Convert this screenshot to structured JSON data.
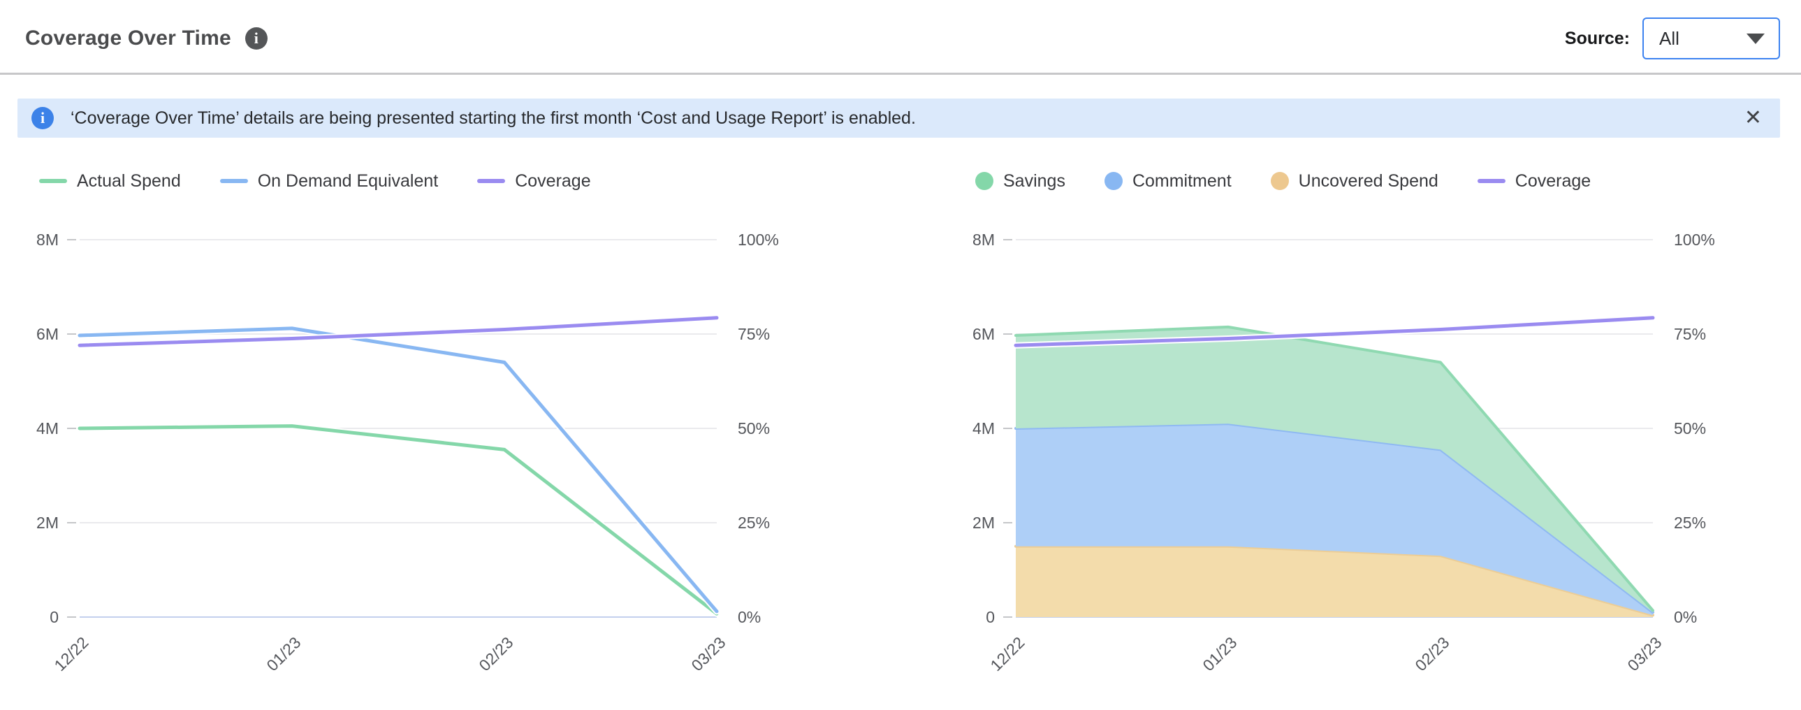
{
  "header": {
    "title": "Coverage Over Time",
    "source_label": "Source:",
    "source_value": "All"
  },
  "banner": {
    "text": "‘Coverage Over Time’ details are being presented starting the first month ‘Cost and Usage Report’ is enabled.",
    "close_icon": "✕"
  },
  "colors": {
    "accent_blue": "#3c82f0",
    "banner_bg": "#dbe9fb",
    "banner_icon_blue": "#3c82e8",
    "header_icon_gray": "#545658",
    "grid": "#e4e4e7",
    "zero_line": "#c3d0ee",
    "axis_text": "#54565b",
    "green": "#84d7a9",
    "blue": "#88b7f2",
    "purple": "#9a8bf0",
    "orange": "#edc88f",
    "green_fill": "#b7e5cd",
    "blue_fill": "#aecff7",
    "orange_fill": "#f3dcab"
  },
  "chart_data": [
    {
      "name": "coverage-line-chart",
      "type": "line",
      "title": "",
      "categories": [
        "12/22",
        "01/23",
        "02/23",
        "03/23"
      ],
      "left_axis": {
        "max": 8,
        "unit": "M",
        "ticks": [
          {
            "value": 0,
            "label": "0"
          },
          {
            "value": 2,
            "label": "2M"
          },
          {
            "value": 4,
            "label": "4M"
          },
          {
            "value": 6,
            "label": "6M"
          },
          {
            "value": 8,
            "label": "8M"
          }
        ]
      },
      "right_axis": {
        "max": 100,
        "unit": "%",
        "ticks": [
          {
            "value": 0,
            "label": "0%"
          },
          {
            "value": 25,
            "label": "25%"
          },
          {
            "value": 50,
            "label": "50%"
          },
          {
            "value": 75,
            "label": "75%"
          },
          {
            "value": 100,
            "label": "100%"
          }
        ]
      },
      "legend": [
        {
          "label": "Actual Spend",
          "swatch": "line",
          "color": "#84d7a9"
        },
        {
          "label": "On Demand Equivalent",
          "swatch": "line",
          "color": "#88b7f2"
        },
        {
          "label": "Coverage",
          "swatch": "line",
          "color": "#9a8bf0"
        }
      ],
      "series": [
        {
          "name": "Actual Spend",
          "style": "line",
          "axis": "left",
          "color": "#84d7a9",
          "values": [
            4.0,
            4.05,
            3.55,
            0.07
          ]
        },
        {
          "name": "On Demand Equivalent",
          "style": "line",
          "axis": "left",
          "color": "#88b7f2",
          "values": [
            5.97,
            6.12,
            5.4,
            0.12
          ]
        },
        {
          "name": "Coverage",
          "style": "line",
          "axis": "right",
          "color": "#9a8bf0",
          "values": [
            72,
            73.8,
            76.2,
            79.3
          ]
        }
      ]
    },
    {
      "name": "coverage-area-chart",
      "type": "area",
      "title": "",
      "categories": [
        "12/22",
        "01/23",
        "02/23",
        "03/23"
      ],
      "left_axis": {
        "max": 8,
        "unit": "M",
        "ticks": [
          {
            "value": 0,
            "label": "0"
          },
          {
            "value": 2,
            "label": "2M"
          },
          {
            "value": 4,
            "label": "4M"
          },
          {
            "value": 6,
            "label": "6M"
          },
          {
            "value": 8,
            "label": "8M"
          }
        ]
      },
      "right_axis": {
        "max": 100,
        "unit": "%",
        "ticks": [
          {
            "value": 0,
            "label": "0%"
          },
          {
            "value": 25,
            "label": "25%"
          },
          {
            "value": 50,
            "label": "50%"
          },
          {
            "value": 75,
            "label": "75%"
          },
          {
            "value": 100,
            "label": "100%"
          }
        ]
      },
      "legend": [
        {
          "label": "Savings",
          "swatch": "circle",
          "color": "#84d7a9"
        },
        {
          "label": "Commitment",
          "swatch": "circle",
          "color": "#88b7f2"
        },
        {
          "label": "Uncovered Spend",
          "swatch": "circle",
          "color": "#edc88f"
        },
        {
          "label": "Coverage",
          "swatch": "line",
          "color": "#9a8bf0"
        }
      ],
      "series": [
        {
          "name": "Uncovered Spend",
          "style": "area",
          "axis": "left",
          "color": "#eccd96",
          "fill": "#f3dcab",
          "values": [
            1.5,
            1.5,
            1.3,
            0.04
          ]
        },
        {
          "name": "Commitment",
          "style": "area",
          "axis": "left",
          "color": "#8fb9f2",
          "fill": "#aecff7",
          "values": [
            2.5,
            2.6,
            2.25,
            0.06
          ]
        },
        {
          "name": "Savings",
          "style": "area",
          "axis": "left",
          "color": "#8fd9b1",
          "fill": "#b7e5cd",
          "values": [
            1.97,
            2.05,
            1.85,
            0.04
          ]
        },
        {
          "name": "Coverage",
          "style": "line",
          "axis": "right",
          "color": "#9a8bf0",
          "values": [
            72,
            73.8,
            76.2,
            79.3
          ]
        }
      ]
    }
  ]
}
